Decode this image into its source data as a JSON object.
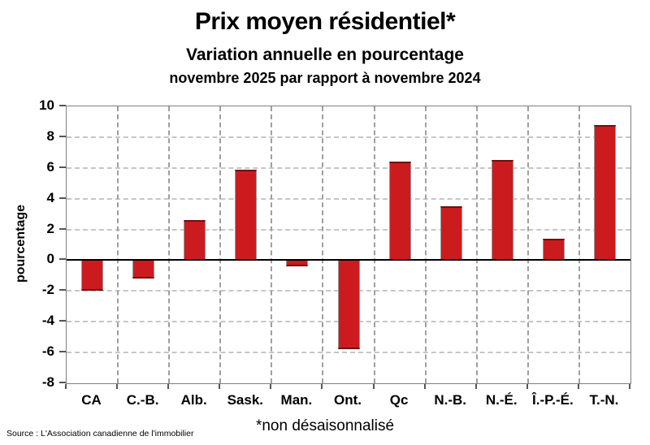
{
  "header": {
    "title": "Prix moyen résidentiel*",
    "subtitle1": "Variation annuelle en pourcentage",
    "subtitle2": "novembre 2025 par rapport à novembre 2024"
  },
  "chart_data": {
    "type": "bar",
    "title": "Prix moyen résidentiel*",
    "subtitle": "Variation annuelle en pourcentage — novembre 2025 par rapport à novembre 2024",
    "categories": [
      "CA",
      "C.-B.",
      "Alb.",
      "Sask.",
      "Man.",
      "Ont.",
      "Qc",
      "N.-B.",
      "N.-É.",
      "Î.-P.-É.",
      "T.-N."
    ],
    "values": [
      -2.0,
      -1.2,
      2.6,
      5.9,
      -0.4,
      -5.8,
      6.4,
      3.5,
      6.5,
      1.4,
      8.8
    ],
    "xlabel": "",
    "ylabel": "pourcentage",
    "ylim": [
      -8,
      10
    ],
    "ytick_step": 2,
    "grid": true,
    "legend": "none",
    "bar_color": "#cc1b1f",
    "bar_border_color": "#9a9a9a",
    "zero_line_color": "#000000",
    "gridline_color": "#c6c6c6"
  },
  "footer": {
    "source": "Source : L'Association canadienne de l'immobilier",
    "footnote": "*non désaisonnalisé"
  }
}
